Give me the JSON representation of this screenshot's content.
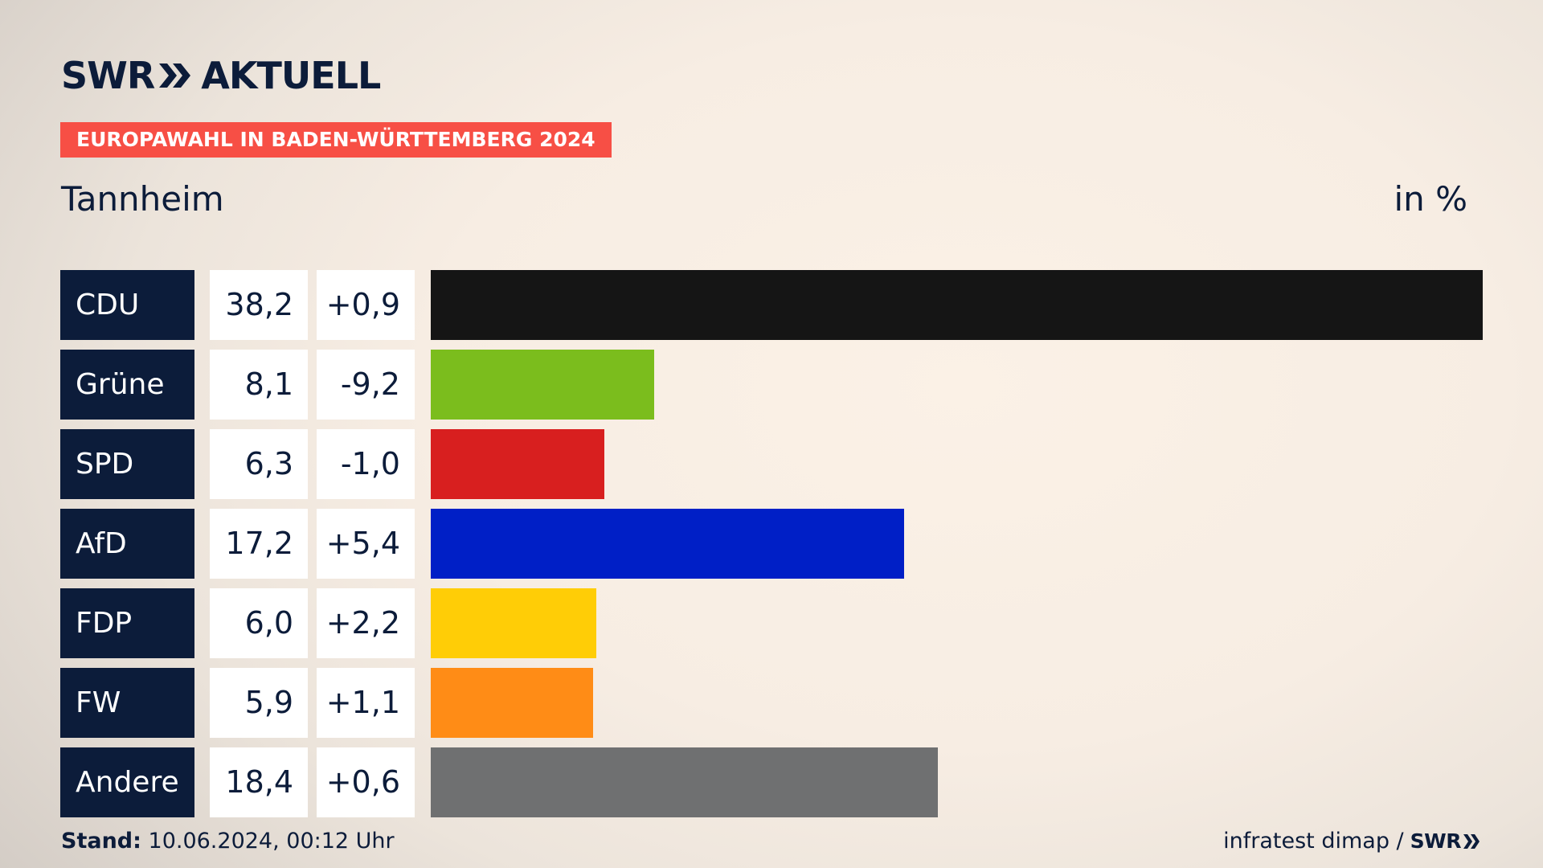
{
  "brand": {
    "swr": "SWR",
    "aktuell": "AKTUELL"
  },
  "tag": "EUROPAWAHL IN BADEN-WÜRTTEMBERG 2024",
  "title": "Tannheim",
  "unit": "in %",
  "chart_data": {
    "type": "bar",
    "orientation": "horizontal",
    "title": "Tannheim",
    "unit": "in %",
    "categories": [
      "CDU",
      "Grüne",
      "SPD",
      "AfD",
      "FDP",
      "FW",
      "Andere"
    ],
    "values": [
      38.2,
      8.1,
      6.3,
      17.2,
      6.0,
      5.9,
      18.4
    ],
    "value_labels": [
      "38,2",
      "8,1",
      "6,3",
      "17,2",
      "6,0",
      "5,9",
      "18,4"
    ],
    "changes": [
      0.9,
      -9.2,
      -1.0,
      5.4,
      2.2,
      1.1,
      0.6
    ],
    "change_labels": [
      "+0,9",
      "-9,2",
      "-1,0",
      "+5,4",
      "+2,2",
      "+1,1",
      "+0,6"
    ],
    "colors": [
      "#151515",
      "#7bbd1d",
      "#d81f1f",
      "#001fc6",
      "#ffcd06",
      "#ff8c16",
      "#6f7071"
    ],
    "xlim": [
      0,
      38.2
    ]
  },
  "footer": {
    "stand_label": "Stand:",
    "stand_value": "10.06.2024, 00:12 Uhr",
    "source": "infratest dimap /",
    "source_logo": "SWR"
  }
}
